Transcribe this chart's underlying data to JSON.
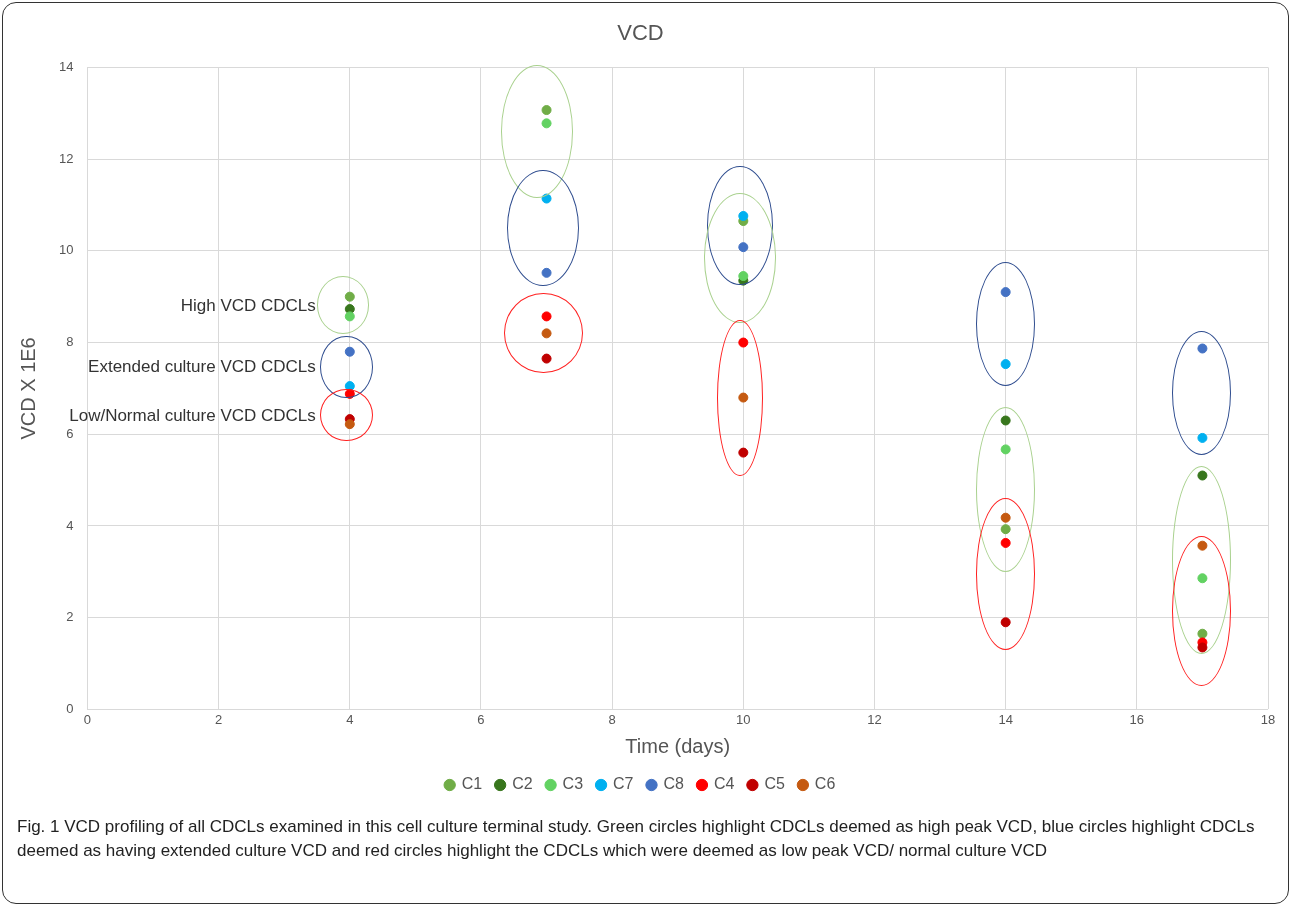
{
  "chart_data": {
    "type": "scatter",
    "title": "VCD",
    "xlabel": "Time (days)",
    "ylabel": "VCD X 1E6",
    "x": [
      4,
      7,
      10,
      14,
      17
    ],
    "series": [
      {
        "name": "C1",
        "color": "#70ad47",
        "values": [
          9.0,
          13.07,
          10.65,
          3.93,
          1.65
        ]
      },
      {
        "name": "C2",
        "color": "#38761d",
        "values": [
          8.73,
          null,
          9.35,
          6.3,
          5.1
        ]
      },
      {
        "name": "C3",
        "color": "#62d262",
        "values": [
          8.57,
          12.78,
          9.45,
          5.67,
          2.86
        ]
      },
      {
        "name": "C7",
        "color": "#00b0f0",
        "values": [
          7.05,
          11.14,
          10.76,
          7.53,
          5.92
        ]
      },
      {
        "name": "C8",
        "color": "#4472c4",
        "values": [
          7.8,
          9.52,
          10.08,
          9.1,
          7.87
        ]
      },
      {
        "name": "C4",
        "color": "#ff0000",
        "values": [
          6.88,
          8.57,
          8.0,
          3.63,
          1.46
        ]
      },
      {
        "name": "C5",
        "color": "#c00000",
        "values": [
          6.33,
          7.65,
          5.6,
          1.9,
          1.35
        ]
      },
      {
        "name": "C6",
        "color": "#c55a11",
        "values": [
          6.22,
          8.2,
          6.8,
          4.18,
          3.57
        ]
      }
    ],
    "xlim": [
      0,
      18
    ],
    "xticks": [
      0,
      2,
      4,
      6,
      8,
      10,
      12,
      14,
      16,
      18
    ],
    "ylim": [
      0,
      14
    ],
    "yticks": [
      0,
      2,
      4,
      6,
      8,
      10,
      12,
      14
    ],
    "grid": true,
    "legend": "bottom",
    "marker": "circle",
    "annotations": [
      "High VCD CDCLs",
      "Extended culture VCD CDCLs",
      "Low/Normal culture VCD CDCLs",
      "Fig. 1 VCD profiling of all CDCLs examined in this cell culture terminal study. Green circles highlight CDCLs deemed as high peak VCD, blue circles highlight CDCLs deemed as having extended culture VCD and red circles highlight the CDCLs which were deemed as low peak VCD/ normal culture VCD"
    ]
  }
}
